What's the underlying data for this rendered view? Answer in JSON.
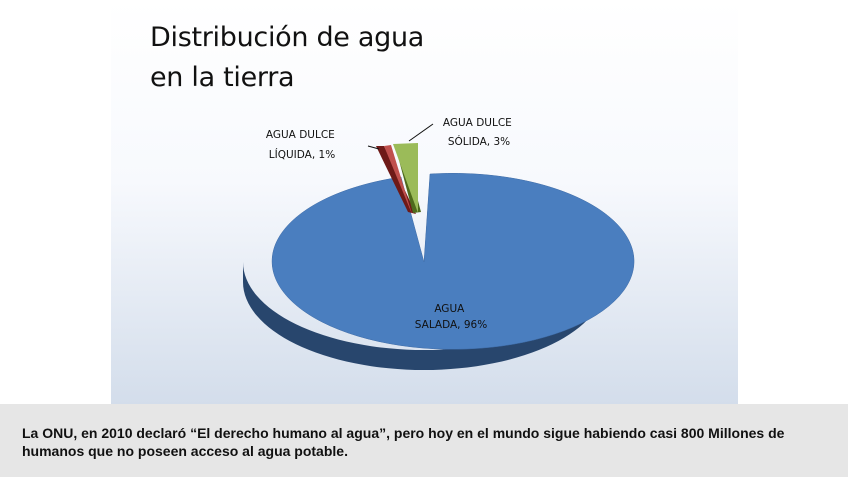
{
  "slide": {
    "title_line1": "Distribución de agua",
    "title_line2": "en la tierra"
  },
  "chart_data": {
    "type": "pie",
    "style": "3d-exploded",
    "title": "Distribución de agua en la tierra",
    "slices": [
      {
        "label_lines": [
          "AGUA",
          "SALADA, 96%"
        ],
        "value": 96,
        "color": "#4a7ebf"
      },
      {
        "label_lines": [
          "AGUA DULCE",
          "LÍQUIDA, 1%"
        ],
        "value": 1,
        "color": "#c0504d"
      },
      {
        "label_lines": [
          "AGUA DULCE",
          "SÓLIDA, 3%"
        ],
        "value": 3,
        "color": "#9bbb59"
      }
    ]
  },
  "caption": {
    "text": "La ONU, en 2010 declaró “El derecho humano al agua”, pero hoy en el mundo sigue habiendo casi 800 Millones de humanos que no poseen acceso al agua potable."
  }
}
